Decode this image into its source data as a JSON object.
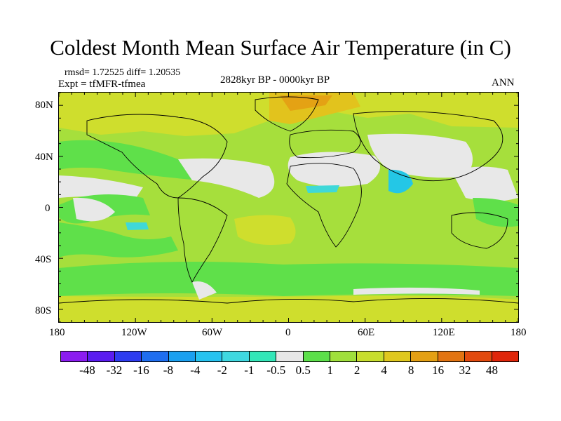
{
  "title": "Coldest Month Mean Surface Air Temperature (in C)",
  "stats": "rmsd= 1.72525 diff= 1.20535",
  "experiment": "Expt = tfMFR-tfmea",
  "period": "2828kyr BP - 0000kyr BP",
  "season": "ANN",
  "lat_labels": [
    "80N",
    "40N",
    "0",
    "40S",
    "80S"
  ],
  "lon_labels": [
    "180",
    "120W",
    "60W",
    "0",
    "60E",
    "120E",
    "180"
  ],
  "colorbar": {
    "colors": [
      "#8b1cf0",
      "#5a1cf0",
      "#2e3cf0",
      "#1f6ef0",
      "#1aa0f0",
      "#26c3f0",
      "#3fd8e0",
      "#33e6b8",
      "#e6e6e6",
      "#5ce04a",
      "#a0e03c",
      "#c8de2e",
      "#e0c81e",
      "#e4a014",
      "#e27412",
      "#e24a0e",
      "#e0260a"
    ],
    "labels": [
      "-48",
      "-32",
      "-16",
      "-8",
      "-4",
      "-2",
      "-1",
      "-0.5",
      "0.5",
      "1",
      "2",
      "4",
      "8",
      "16",
      "32",
      "48"
    ]
  },
  "map_colors": {
    "base": "#a6df3c",
    "zone_1_2": "#5fe04a",
    "zone_2_4": "#a6df3c",
    "zone_4_8": "#cfde2d",
    "zone_8_16": "#e2c31d",
    "zone_16_32": "#e4a214",
    "neutral": "#e8e8e8",
    "cold_1": "#3fd8d8",
    "cold_2": "#24c7e6"
  }
}
